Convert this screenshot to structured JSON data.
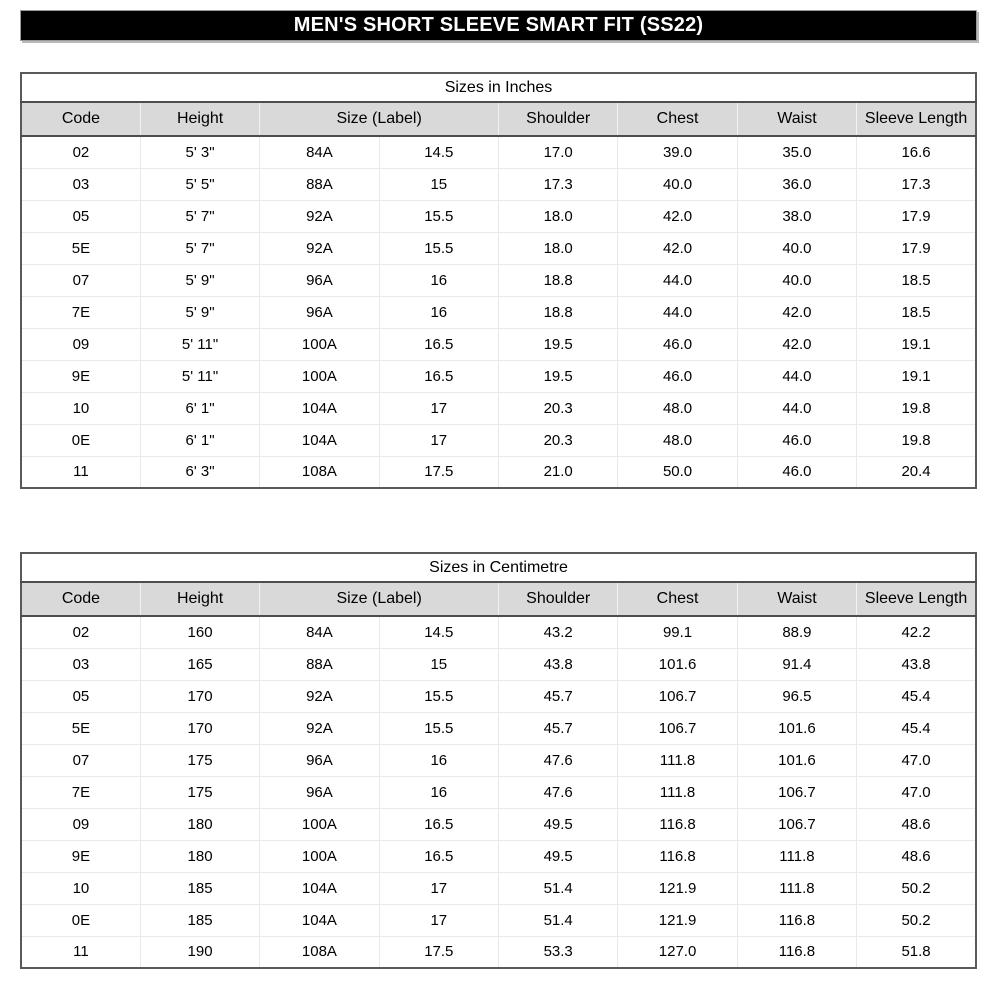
{
  "page_title": "MEN'S SHORT SLEEVE SMART FIT (SS22)",
  "colors": {
    "banner_bg": "#000000",
    "banner_text": "#ffffff",
    "header_row_bg": "#d9d9d9",
    "dark_rule": "#4d4d4d",
    "outer_border": "#595959",
    "gridline": "#e9e9e9"
  },
  "tables": [
    {
      "title": "Sizes in Inches",
      "headers": [
        {
          "label": "Code",
          "colspan": 1
        },
        {
          "label": "Height",
          "colspan": 1
        },
        {
          "label": "Size (Label)",
          "colspan": 2
        },
        {
          "label": "Shoulder",
          "colspan": 1
        },
        {
          "label": "Chest",
          "colspan": 1
        },
        {
          "label": "Waist",
          "colspan": 1
        },
        {
          "label": "Sleeve Length",
          "colspan": 1
        }
      ],
      "rows": [
        [
          "02",
          "5' 3\"",
          "84A",
          "14.5",
          "17.0",
          "39.0",
          "35.0",
          "16.6"
        ],
        [
          "03",
          "5' 5\"",
          "88A",
          "15",
          "17.3",
          "40.0",
          "36.0",
          "17.3"
        ],
        [
          "05",
          "5' 7\"",
          "92A",
          "15.5",
          "18.0",
          "42.0",
          "38.0",
          "17.9"
        ],
        [
          "5E",
          "5' 7\"",
          "92A",
          "15.5",
          "18.0",
          "42.0",
          "40.0",
          "17.9"
        ],
        [
          "07",
          "5' 9\"",
          "96A",
          "16",
          "18.8",
          "44.0",
          "40.0",
          "18.5"
        ],
        [
          "7E",
          "5' 9\"",
          "96A",
          "16",
          "18.8",
          "44.0",
          "42.0",
          "18.5"
        ],
        [
          "09",
          "5' 11\"",
          "100A",
          "16.5",
          "19.5",
          "46.0",
          "42.0",
          "19.1"
        ],
        [
          "9E",
          "5' 11\"",
          "100A",
          "16.5",
          "19.5",
          "46.0",
          "44.0",
          "19.1"
        ],
        [
          "10",
          "6' 1\"",
          "104A",
          "17",
          "20.3",
          "48.0",
          "44.0",
          "19.8"
        ],
        [
          "0E",
          "6' 1\"",
          "104A",
          "17",
          "20.3",
          "48.0",
          "46.0",
          "19.8"
        ],
        [
          "11",
          "6' 3\"",
          "108A",
          "17.5",
          "21.0",
          "50.0",
          "46.0",
          "20.4"
        ]
      ]
    },
    {
      "title": "Sizes in Centimetre",
      "headers": [
        {
          "label": "Code",
          "colspan": 1
        },
        {
          "label": "Height",
          "colspan": 1
        },
        {
          "label": "Size (Label)",
          "colspan": 2
        },
        {
          "label": "Shoulder",
          "colspan": 1
        },
        {
          "label": "Chest",
          "colspan": 1
        },
        {
          "label": "Waist",
          "colspan": 1
        },
        {
          "label": "Sleeve Length",
          "colspan": 1
        }
      ],
      "rows": [
        [
          "02",
          "160",
          "84A",
          "14.5",
          "43.2",
          "99.1",
          "88.9",
          "42.2"
        ],
        [
          "03",
          "165",
          "88A",
          "15",
          "43.8",
          "101.6",
          "91.4",
          "43.8"
        ],
        [
          "05",
          "170",
          "92A",
          "15.5",
          "45.7",
          "106.7",
          "96.5",
          "45.4"
        ],
        [
          "5E",
          "170",
          "92A",
          "15.5",
          "45.7",
          "106.7",
          "101.6",
          "45.4"
        ],
        [
          "07",
          "175",
          "96A",
          "16",
          "47.6",
          "111.8",
          "101.6",
          "47.0"
        ],
        [
          "7E",
          "175",
          "96A",
          "16",
          "47.6",
          "111.8",
          "106.7",
          "47.0"
        ],
        [
          "09",
          "180",
          "100A",
          "16.5",
          "49.5",
          "116.8",
          "106.7",
          "48.6"
        ],
        [
          "9E",
          "180",
          "100A",
          "16.5",
          "49.5",
          "116.8",
          "111.8",
          "48.6"
        ],
        [
          "10",
          "185",
          "104A",
          "17",
          "51.4",
          "121.9",
          "111.8",
          "50.2"
        ],
        [
          "0E",
          "185",
          "104A",
          "17",
          "51.4",
          "121.9",
          "116.8",
          "50.2"
        ],
        [
          "11",
          "190",
          "108A",
          "17.5",
          "53.3",
          "127.0",
          "116.8",
          "51.8"
        ]
      ]
    }
  ]
}
